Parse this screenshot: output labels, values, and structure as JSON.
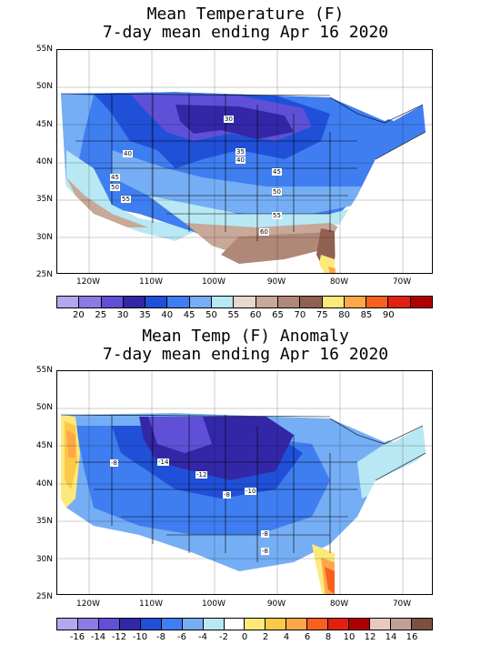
{
  "top": {
    "title_line1": "Mean Temperature (F)",
    "title_line2": "7-day mean ending Apr 16 2020",
    "lat_labels": [
      "55N",
      "50N",
      "45N",
      "40N",
      "35N",
      "30N",
      "25N"
    ],
    "lon_labels": [
      "120W",
      "110W",
      "100W",
      "90W",
      "80W",
      "70W"
    ],
    "contour_labels": [
      "30",
      "35",
      "40",
      "40",
      "45",
      "50",
      "55",
      "45",
      "50",
      "55",
      "60"
    ],
    "colorbar_ticks": [
      "20",
      "25",
      "30",
      "35",
      "40",
      "45",
      "50",
      "55",
      "60",
      "65",
      "70",
      "75",
      "80",
      "85",
      "90"
    ],
    "colorbar_colors": [
      "#b4a7ee",
      "#8d7ae5",
      "#6050d8",
      "#3327a8",
      "#2050d8",
      "#3f7ef0",
      "#75aef4",
      "#b8e8f4",
      "#e8d8d0",
      "#c8a898",
      "#b08878",
      "#906050",
      "#fde87a",
      "#fca84a",
      "#f86020",
      "#e02010",
      "#b00000"
    ]
  },
  "bottom": {
    "title_line1": "Mean Temp (F) Anomaly",
    "title_line2": "7-day mean ending Apr 16 2020",
    "lat_labels": [
      "55N",
      "50N",
      "45N",
      "40N",
      "35N",
      "30N",
      "25N"
    ],
    "lon_labels": [
      "120W",
      "110W",
      "100W",
      "90W",
      "80W",
      "70W"
    ],
    "contour_labels": [
      "-14",
      "-8",
      "-12",
      "-8",
      "-10",
      "-8",
      "-8"
    ],
    "colorbar_ticks": [
      "-16",
      "-14",
      "-12",
      "-10",
      "-8",
      "-6",
      "-4",
      "-2",
      "0",
      "2",
      "4",
      "6",
      "8",
      "10",
      "12",
      "14",
      "16"
    ],
    "colorbar_colors": [
      "#b4a7ee",
      "#8d7ae5",
      "#6050d8",
      "#3327a8",
      "#2050d8",
      "#3f7ef0",
      "#75aef4",
      "#b8e8f4",
      "#ffffff",
      "#fde87a",
      "#fcc848",
      "#fca84a",
      "#f86020",
      "#e02010",
      "#b00000",
      "#e8c8c0",
      "#c0a098",
      "#7a5040"
    ]
  }
}
